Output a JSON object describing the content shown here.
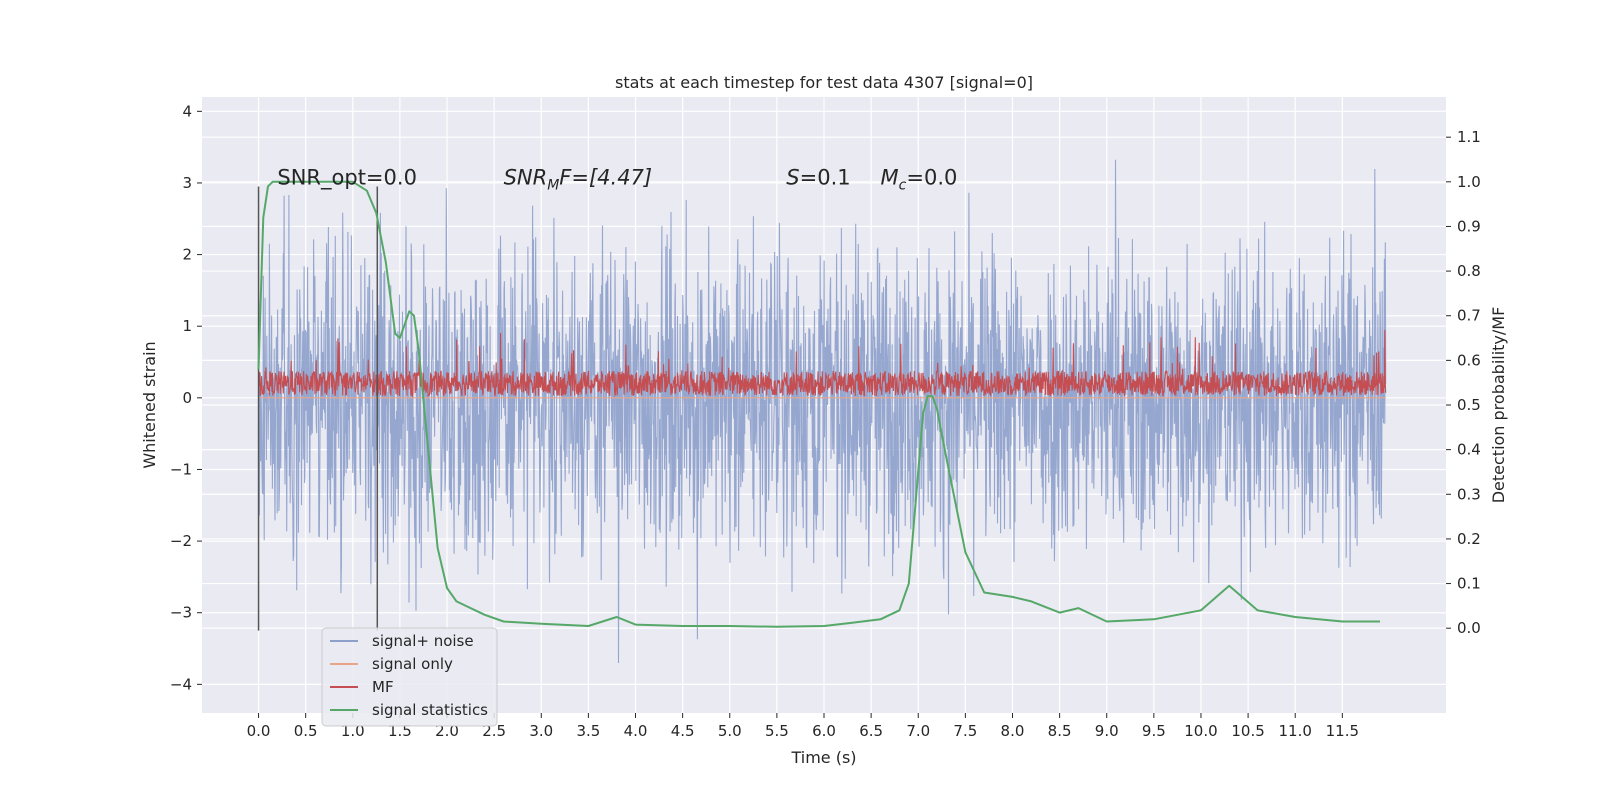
{
  "chart_data": {
    "type": "line",
    "title": "stats at each timestep for test data 4307 [signal=0]",
    "xlabel": "Time (s)",
    "ylabel": "Whitened strain",
    "ylabel_right": "Detection probability/MF",
    "xlim": [
      -0.6,
      12.6
    ],
    "ylim": [
      -4.4,
      4.2
    ],
    "ylim_right": [
      -0.19,
      1.19
    ],
    "x_ticks": [
      "0.0",
      "0.5",
      "1.0",
      "1.5",
      "2.0",
      "2.5",
      "3.0",
      "3.5",
      "4.0",
      "4.5",
      "5.0",
      "5.5",
      "6.0",
      "6.5",
      "7.0",
      "7.5",
      "8.0",
      "8.5",
      "9.0",
      "9.5",
      "10.0",
      "10.5",
      "11.0",
      "11.5"
    ],
    "y_ticks": [
      "4",
      "3",
      "2",
      "1",
      "0",
      "−1",
      "−2",
      "−3",
      "−4"
    ],
    "y_ticks_right": [
      "1.1",
      "1.0",
      "0.9",
      "0.8",
      "0.7",
      "0.6",
      "0.5",
      "0.4",
      "0.3",
      "0.2",
      "0.1",
      "0.0"
    ],
    "annotations": {
      "snr_opt": "SNR_opt=0.0",
      "snr_mf_sym": "SNR",
      "snr_mf_sub": "M",
      "snr_mf_rest": "F=[4.47]",
      "s_sym": "S",
      "s_rest": "=0.1",
      "mc_sym": "M",
      "mc_sub": "c",
      "mc_rest": "=0.0"
    },
    "vlines": [
      0.0,
      1.26
    ],
    "series": [
      {
        "name": "signal+ noise",
        "color": "#8da0cb",
        "style": "noise",
        "x_range": [
          0.0,
          11.96
        ],
        "sigma": 1.0
      },
      {
        "name": "signal only",
        "color": "#e8a488",
        "style": "flat",
        "values": [
          0.0
        ]
      },
      {
        "name": "MF",
        "color": "#c44e52",
        "style": "mf",
        "x_range": [
          0.0,
          11.96
        ],
        "center": 0.2,
        "band": 0.35
      },
      {
        "name": "signal statistics",
        "color": "#55a868",
        "axis": "right",
        "x": [
          0.0,
          0.05,
          0.1,
          0.15,
          0.2,
          0.3,
          0.5,
          0.8,
          1.0,
          1.15,
          1.25,
          1.35,
          1.45,
          1.5,
          1.55,
          1.6,
          1.65,
          1.7,
          1.8,
          1.9,
          2.0,
          2.1,
          2.2,
          2.4,
          2.6,
          3.0,
          3.5,
          3.8,
          4.0,
          4.5,
          5.0,
          5.5,
          6.0,
          6.3,
          6.6,
          6.8,
          6.9,
          7.0,
          7.05,
          7.1,
          7.15,
          7.2,
          7.3,
          7.5,
          7.7,
          8.0,
          8.2,
          8.5,
          8.7,
          9.0,
          9.5,
          10.0,
          10.3,
          10.6,
          11.0,
          11.5,
          11.9
        ],
        "values": [
          0.58,
          0.92,
          0.99,
          1.0,
          1.0,
          1.0,
          1.0,
          1.0,
          1.0,
          0.98,
          0.93,
          0.82,
          0.66,
          0.65,
          0.68,
          0.71,
          0.7,
          0.62,
          0.4,
          0.18,
          0.09,
          0.06,
          0.05,
          0.03,
          0.015,
          0.01,
          0.005,
          0.025,
          0.008,
          0.005,
          0.005,
          0.003,
          0.005,
          0.012,
          0.02,
          0.04,
          0.1,
          0.35,
          0.48,
          0.52,
          0.52,
          0.49,
          0.38,
          0.17,
          0.08,
          0.07,
          0.06,
          0.035,
          0.045,
          0.015,
          0.02,
          0.04,
          0.095,
          0.04,
          0.025,
          0.015,
          0.015
        ]
      }
    ],
    "legend_position": "lower-left"
  }
}
